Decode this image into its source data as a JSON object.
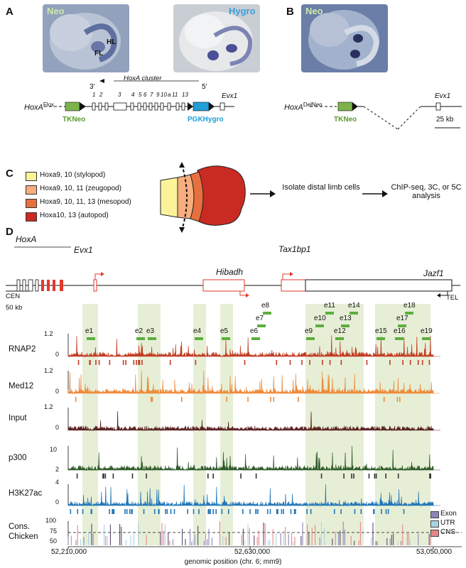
{
  "panels": {
    "A": {
      "letter": "A",
      "photo1_label": "Neo",
      "photo1_fl": "FL",
      "photo1_hl": "HL",
      "photo2_label": "Hygro",
      "locus_name": "HoxA",
      "locus_sup": "Flox",
      "cluster_label": "HoxA cluster",
      "cluster_end3": "3'",
      "cluster_end5": "5'",
      "gene_numbers": [
        "1",
        "2",
        "3",
        "4",
        "5",
        "6",
        "7",
        "9",
        "10",
        "a",
        "11",
        "13"
      ],
      "evx1": "Evx1",
      "tkneo": "TKNeo",
      "pgkhygro": "PGKHygro"
    },
    "B": {
      "letter": "B",
      "photo_label": "Neo",
      "locus_name": "HoxA",
      "locus_sup": "DelNeo",
      "evx1": "Evx1",
      "tkneo": "TKNeo",
      "scale": "25 kb"
    },
    "C": {
      "letter": "C",
      "legend": [
        {
          "label": "Hoxa9, 10 (stylopod)",
          "color": "#fbf29a"
        },
        {
          "label": "Hoxa9, 10, 11 (zeugopod)",
          "color": "#f7ad7d"
        },
        {
          "label": "Hoxa9, 10, 11, 13 (mesopod)",
          "color": "#e8703f"
        },
        {
          "label": "Hoxa10, 13 (autopod)",
          "color": "#c92a22"
        }
      ],
      "step1": "Isolate distal limb cells",
      "step2": "ChIP-seq, 3C, or 5C analysis"
    },
    "D": {
      "letter": "D",
      "genes": {
        "hoxa": "HoxA",
        "evx1": "Evx1",
        "hibadh": "Hibadh",
        "tax1bp1": "Tax1bp1",
        "jazf1": "Jazf1"
      },
      "cen": "CEN",
      "tel": "TEL",
      "scale": "50 kb",
      "elements": [
        "e1",
        "e2",
        "e3",
        "e4",
        "e5",
        "e6",
        "e7",
        "e8",
        "e9",
        "e10",
        "e11",
        "e12",
        "e13",
        "e14",
        "e15",
        "e16",
        "e17",
        "e18",
        "e19"
      ],
      "tracks": [
        {
          "name": "RNAP2",
          "ymax": "1.2",
          "ymin": "0",
          "color": "#c23b22"
        },
        {
          "name": "Med12",
          "ymax": "1.2",
          "ymin": "0",
          "color": "#ee8a3a"
        },
        {
          "name": "Input",
          "ymax": "1.2",
          "ymin": "0",
          "color": "#5a2020"
        },
        {
          "name": "p300",
          "ymax": "10",
          "ymin": "2",
          "color": "#2f5a2a"
        },
        {
          "name": "H3K27ac",
          "ymax": "4",
          "ymin": "0",
          "color": "#2277b8"
        }
      ],
      "cons": {
        "name1": "Cons.",
        "name2": "Chicken",
        "ymax": "100",
        "yticks": [
          "100",
          "75",
          "50"
        ]
      },
      "cons_legend": [
        {
          "label": "Exon",
          "color": "#8e84b8"
        },
        {
          "label": "UTR",
          "color": "#a9d3e3"
        },
        {
          "label": "CNS",
          "color": "#e8868a"
        }
      ],
      "x_ticks": [
        "52,210,000",
        "52,630,000",
        "53,050,000"
      ],
      "x_label": "genomic position (chr. 6; mm9)"
    }
  }
}
